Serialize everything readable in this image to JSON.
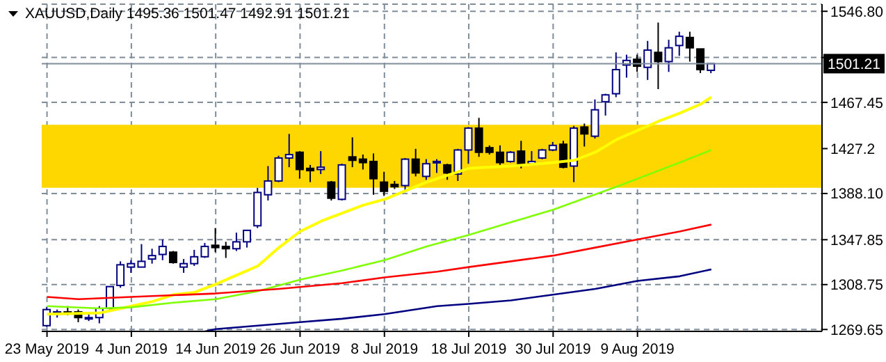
{
  "chart_data": {
    "type": "candlestick",
    "title": "XAUUSD,Daily 1495.36 1501.47 1492.91 1501.21",
    "categories": [
      "23 May 2019",
      null,
      null,
      null,
      null,
      null,
      null,
      null,
      "4 Jun 2019",
      null,
      null,
      null,
      null,
      null,
      null,
      null,
      "14 Jun 2019",
      null,
      null,
      null,
      null,
      null,
      null,
      null,
      "26 Jun 2019",
      null,
      null,
      null,
      null,
      null,
      null,
      null,
      "8 Jul 2019",
      null,
      null,
      null,
      null,
      null,
      null,
      null,
      "18 Jul 2019",
      null,
      null,
      null,
      null,
      null,
      null,
      null,
      "30 Jul 2019",
      null,
      null,
      null,
      null,
      null,
      null,
      null,
      "9 Aug 2019",
      null,
      null,
      null,
      null,
      null,
      null,
      null,
      null,
      null,
      null,
      null,
      null,
      null,
      null,
      null,
      null,
      null
    ],
    "ohlc": [
      [
        1273,
        1289,
        1272,
        1287
      ],
      [
        1284,
        1287,
        1280,
        1285
      ],
      [
        1285,
        1290,
        1282,
        1284
      ],
      [
        1285,
        1287,
        1276,
        1280
      ],
      [
        1279,
        1283,
        1277,
        1280
      ],
      [
        1280,
        1290,
        1275,
        1288
      ],
      [
        1288,
        1307,
        1287,
        1307
      ],
      [
        1308,
        1329,
        1306,
        1326
      ],
      [
        1324,
        1330,
        1319,
        1327
      ],
      [
        1324,
        1344,
        1324,
        1329
      ],
      [
        1331,
        1340,
        1327,
        1334
      ],
      [
        1335,
        1348,
        1330,
        1342
      ],
      [
        1337,
        1338,
        1327,
        1328
      ],
      [
        1324,
        1331,
        1319,
        1327
      ],
      [
        1327,
        1339,
        1325,
        1333
      ],
      [
        1333,
        1345,
        1332,
        1342
      ],
      [
        1343,
        1358,
        1337,
        1341
      ],
      [
        1342,
        1346,
        1332,
        1340
      ],
      [
        1340,
        1354,
        1338,
        1346
      ],
      [
        1346,
        1356,
        1341,
        1356
      ],
      [
        1360,
        1393,
        1358,
        1389
      ],
      [
        1387,
        1412,
        1382,
        1399
      ],
      [
        1399,
        1421,
        1398,
        1419
      ],
      [
        1419,
        1440,
        1411,
        1422
      ],
      [
        1424,
        1425,
        1401,
        1409
      ],
      [
        1410,
        1413,
        1398,
        1408
      ],
      [
        1409,
        1425,
        1405,
        1411
      ],
      [
        1398,
        1399,
        1382,
        1384
      ],
      [
        1383,
        1414,
        1382,
        1413
      ],
      [
        1420,
        1437,
        1411,
        1417
      ],
      [
        1418,
        1422,
        1409,
        1415
      ],
      [
        1416,
        1423,
        1387,
        1401
      ],
      [
        1398,
        1407,
        1386,
        1390
      ],
      [
        1396,
        1399,
        1392,
        1394
      ],
      [
        1395,
        1419,
        1391,
        1418
      ],
      [
        1418,
        1427,
        1403,
        1406
      ],
      [
        1403,
        1418,
        1400,
        1414
      ],
      [
        1415,
        1418,
        1406,
        1416
      ],
      [
        1413,
        1414,
        1400,
        1406
      ],
      [
        1405,
        1427,
        1399,
        1426
      ],
      [
        1426,
        1446,
        1414,
        1445
      ],
      [
        1445,
        1454,
        1420,
        1424
      ],
      [
        1428,
        1430,
        1422,
        1424
      ],
      [
        1424,
        1430,
        1413,
        1415
      ],
      [
        1416,
        1425,
        1415,
        1424
      ],
      [
        1425,
        1434,
        1410,
        1414
      ],
      [
        1414,
        1425,
        1413,
        1416
      ],
      [
        1419,
        1427,
        1418,
        1426
      ],
      [
        1426,
        1433,
        1425,
        1430
      ],
      [
        1431,
        1434,
        1410,
        1411
      ],
      [
        1412,
        1447,
        1398,
        1445
      ],
      [
        1446,
        1449,
        1429,
        1440
      ],
      [
        1438,
        1470,
        1436,
        1461
      ],
      [
        1468,
        1475,
        1456,
        1474
      ],
      [
        1475,
        1511,
        1472,
        1496
      ],
      [
        1500,
        1509,
        1489,
        1504
      ],
      [
        1505,
        1509,
        1494,
        1499
      ],
      [
        1498,
        1521,
        1487,
        1513
      ],
      [
        1511,
        1537,
        1479,
        1503
      ],
      [
        1503,
        1522,
        1494,
        1515
      ],
      [
        1517,
        1529,
        1508,
        1525
      ],
      [
        1524,
        1529,
        1503,
        1515
      ],
      [
        1514,
        1514,
        1493,
        1496
      ],
      [
        1495.36,
        1501.47,
        1492.91,
        1501.21
      ],
      null,
      null,
      null,
      null,
      null,
      null,
      null,
      null,
      null,
      null
    ],
    "colors": [
      "#000080",
      "#000080",
      "#000000",
      "#000000",
      "#000080",
      "#000080",
      "#000080",
      "#000080",
      "#000080",
      "#000080",
      "#000080",
      "#000080",
      "#000000",
      "#000080",
      "#000080",
      "#000080",
      "#000000",
      "#000000",
      "#000080",
      "#000080",
      "#000080",
      "#000080",
      "#000080",
      "#000080",
      "#000000",
      "#000000",
      "#000080",
      "#000000",
      "#000080",
      "#000000",
      "#000000",
      "#000000",
      "#000000",
      "#000000",
      "#000080",
      "#000000",
      "#000080",
      "#000080",
      "#000000",
      "#000080",
      "#000080",
      "#000000",
      "#000000",
      "#000000",
      "#000080",
      "#000000",
      "#000080",
      "#000080",
      "#000080",
      "#000000",
      "#000080",
      "#000000",
      "#000080",
      "#000080",
      "#000080",
      "#000080",
      "#000000",
      "#000080",
      "#000000",
      "#000080",
      "#000080",
      "#000000",
      "#000000",
      "#000080",
      null,
      null,
      null,
      null,
      null,
      null,
      null,
      null,
      null,
      null
    ],
    "series": [
      {
        "type": "line",
        "color": "#ffff00",
        "values": [
          1283,
          null,
          null,
          null,
          null,
          1284,
          1286,
          null,
          1290,
          null,
          1294,
          null,
          1300,
          null,
          1302,
          null,
          1309,
          null,
          1317,
          null,
          1325,
          null,
          1341,
          null,
          1355,
          null,
          1364,
          null,
          1371,
          null,
          1378,
          null,
          1383,
          null,
          null,
          null,
          1398,
          null,
          null,
          null,
          1410,
          null,
          null,
          null,
          1412,
          null,
          null,
          null,
          1415,
          null,
          1417,
          null,
          1424,
          null,
          1435,
          null,
          1443,
          null,
          1451,
          null,
          1458,
          null,
          1466,
          1472,
          null,
          null,
          null,
          null,
          null,
          null,
          null,
          null,
          null,
          null
        ]
      },
      {
        "type": "line",
        "color": "#7fff00",
        "values": [
          1290,
          null,
          null,
          null,
          null,
          1288,
          null,
          null,
          1289,
          null,
          null,
          null,
          1293,
          null,
          null,
          null,
          1296,
          null,
          null,
          null,
          1303,
          null,
          null,
          null,
          1313,
          null,
          null,
          null,
          1321,
          null,
          null,
          null,
          1330,
          null,
          null,
          null,
          1342,
          null,
          null,
          null,
          1352,
          null,
          null,
          null,
          1363,
          null,
          null,
          null,
          1374,
          null,
          null,
          1384,
          null,
          null,
          1394,
          null,
          1401,
          null,
          null,
          null,
          1415,
          null,
          null,
          1426,
          null,
          null,
          null,
          null,
          null,
          null,
          null,
          null,
          null,
          null
        ]
      },
      {
        "type": "line",
        "color": "#ff0000",
        "values": [
          1298,
          null,
          null,
          1296,
          null,
          null,
          null,
          null,
          1298,
          null,
          null,
          null,
          null,
          null,
          null,
          null,
          1301,
          null,
          null,
          null,
          null,
          null,
          1305,
          null,
          null,
          null,
          null,
          null,
          1310,
          null,
          null,
          null,
          1315,
          null,
          null,
          null,
          null,
          1320,
          null,
          null,
          1324,
          null,
          null,
          null,
          1329,
          null,
          null,
          null,
          1334,
          null,
          null,
          null,
          1341,
          null,
          null,
          null,
          1348,
          null,
          null,
          null,
          1355,
          null,
          null,
          1361,
          null,
          null,
          null,
          null,
          null,
          null,
          null,
          null,
          null,
          null
        ]
      },
      {
        "type": "line",
        "color": "#000080",
        "values": [
          null,
          null,
          null,
          null,
          null,
          null,
          null,
          null,
          null,
          null,
          null,
          null,
          null,
          null,
          null,
          1268,
          1270,
          null,
          null,
          null,
          1273,
          null,
          null,
          null,
          1276,
          null,
          null,
          null,
          1279,
          null,
          null,
          null,
          1283,
          null,
          null,
          null,
          null,
          1290,
          null,
          null,
          1292,
          null,
          null,
          null,
          1295,
          null,
          null,
          null,
          1300,
          null,
          null,
          null,
          1305,
          null,
          null,
          null,
          1312,
          null,
          null,
          null,
          1316,
          null,
          null,
          1322,
          null,
          null,
          null,
          null,
          null,
          null,
          null,
          null,
          null,
          null
        ]
      }
    ],
    "ylim": [
      1268,
      1553
    ],
    "yticks": [
      1269.65,
      1308.75,
      1347.85,
      {
        "value": 1388.1,
        "label": "1388.10"
      },
      1427.2,
      1467.45,
      {
        "value": 1506.55,
        "label": null
      },
      {
        "value": 1546.8,
        "label": "1546.80"
      }
    ],
    "grid": true,
    "bands": [
      {
        "axis": "y",
        "from": 1393,
        "to": 1448,
        "color": "#ffd700"
      }
    ],
    "ref_lines": [
      {
        "axis": "y",
        "value": 1501.21,
        "label": "1501.21",
        "color": "#7f8c99"
      }
    ]
  }
}
